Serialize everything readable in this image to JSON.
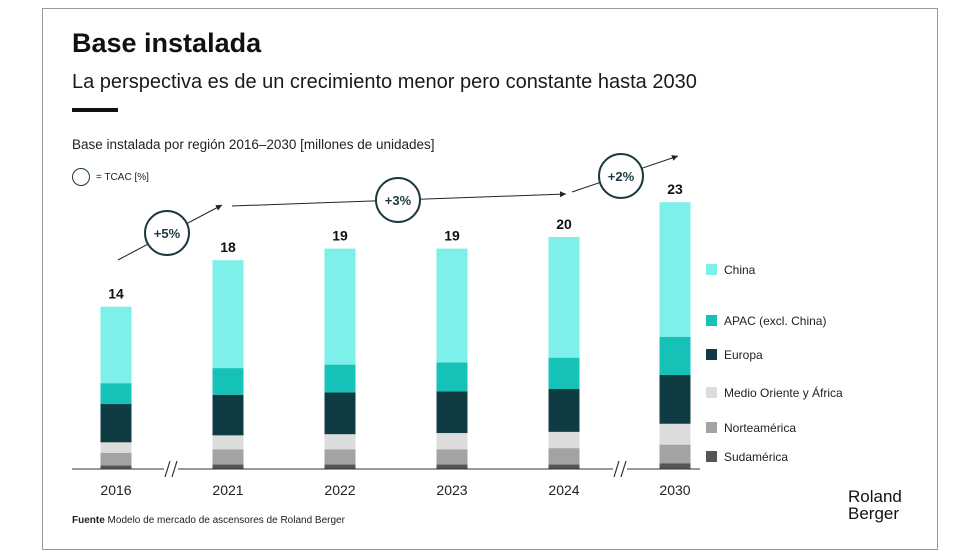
{
  "header": {
    "title": "Base instalada",
    "subtitle": "La perspectiva es de un crecimiento menor pero constante hasta 2030"
  },
  "chart_label": "Base instalada por región 2016–2030 [millones de unidades]",
  "cagr_legend": "= TCAC [%]",
  "source": {
    "bold": "Fuente",
    "text": " Modelo de mercado de ascensores de Roland Berger"
  },
  "logo": {
    "line1": "Roland",
    "line2": "Berger"
  },
  "colors": {
    "China": "#7df0ea",
    "APAC": "#16c2b7",
    "Europa": "#0f3b42",
    "MedioOriente": "#dcdcdc",
    "Norteamerica": "#a3a3a3",
    "Sudamerica": "#555555"
  },
  "chart_data": {
    "type": "bar",
    "stacked": true,
    "categories": [
      "2016",
      "2021",
      "2022",
      "2023",
      "2024",
      "2030"
    ],
    "totals": [
      "14",
      "18",
      "19",
      "19",
      "20",
      "23"
    ],
    "series": [
      {
        "name": "Sudamérica",
        "values": [
          0.3,
          0.4,
          0.4,
          0.4,
          0.4,
          0.5
        ]
      },
      {
        "name": "Norteamérica",
        "values": [
          1.1,
          1.3,
          1.3,
          1.3,
          1.4,
          1.6
        ]
      },
      {
        "name": "Medio Oriente y África",
        "values": [
          0.9,
          1.2,
          1.3,
          1.4,
          1.4,
          1.8
        ]
      },
      {
        "name": "Europa",
        "values": [
          3.3,
          3.5,
          3.6,
          3.6,
          3.7,
          4.2
        ]
      },
      {
        "name": "APAC (excl. China)",
        "values": [
          1.8,
          2.3,
          2.4,
          2.5,
          2.7,
          3.3
        ]
      },
      {
        "name": "China",
        "values": [
          6.6,
          9.3,
          10.0,
          9.8,
          10.4,
          11.6
        ]
      }
    ],
    "cagr": [
      {
        "label": "+5%",
        "from": "2016",
        "to": "2021"
      },
      {
        "label": "+3%",
        "from": "2021",
        "to": "2024"
      },
      {
        "label": "+2%",
        "from": "2024",
        "to": "2030"
      }
    ],
    "axis_breaks": [
      "2016-2021",
      "2024-2030"
    ],
    "ylim": [
      0,
      23
    ],
    "legend_position": "right",
    "grid": false
  }
}
